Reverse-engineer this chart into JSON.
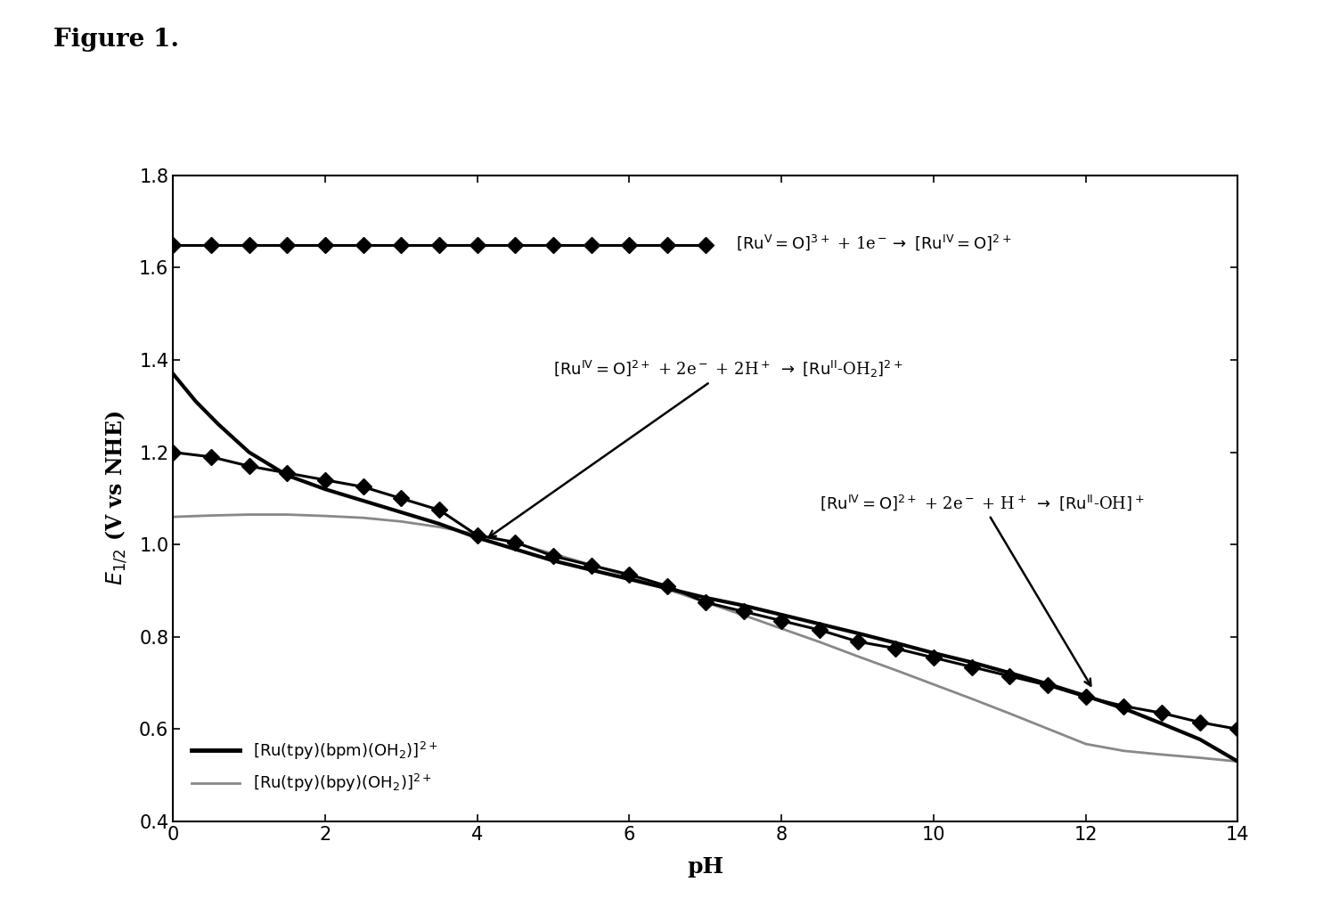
{
  "title": "Figure 1.",
  "xlabel": "pH",
  "ylabel": "E1/2 (V vs NHE)",
  "xlim": [
    0,
    14
  ],
  "ylim": [
    0.4,
    1.8
  ],
  "xticks": [
    0,
    2,
    4,
    6,
    8,
    10,
    12,
    14
  ],
  "yticks": [
    0.4,
    0.6,
    0.8,
    1.0,
    1.2,
    1.4,
    1.6,
    1.8
  ],
  "series_flat_x": [
    0,
    0.5,
    1,
    1.5,
    2,
    2.5,
    3,
    3.5,
    4,
    4.5,
    5,
    5.5,
    6,
    6.5,
    7
  ],
  "series_flat_y": [
    1.65,
    1.65,
    1.65,
    1.65,
    1.65,
    1.65,
    1.65,
    1.65,
    1.65,
    1.65,
    1.65,
    1.65,
    1.65,
    1.65,
    1.65
  ],
  "series_diamond_x": [
    0,
    0.5,
    1,
    1.5,
    2,
    2.5,
    3,
    3.5,
    4,
    4.5,
    5,
    5.5,
    6,
    6.5,
    7,
    7.5,
    8,
    8.5,
    9,
    9.5,
    10,
    10.5,
    11,
    11.5,
    12,
    12.5,
    13,
    13.5,
    14
  ],
  "series_diamond_y": [
    1.2,
    1.19,
    1.17,
    1.155,
    1.14,
    1.125,
    1.1,
    1.075,
    1.02,
    1.005,
    0.975,
    0.955,
    0.935,
    0.91,
    0.875,
    0.855,
    0.835,
    0.815,
    0.79,
    0.775,
    0.755,
    0.735,
    0.715,
    0.695,
    0.67,
    0.65,
    0.635,
    0.615,
    0.6
  ],
  "series_bpm_x": [
    0,
    0.3,
    0.6,
    1,
    1.5,
    2,
    2.5,
    3,
    3.5,
    4,
    4.5,
    5,
    5.5,
    6,
    6.5,
    7,
    7.5,
    8,
    8.5,
    9,
    9.5,
    10,
    10.5,
    11,
    11.5,
    12,
    12.5,
    13,
    13.5,
    14
  ],
  "series_bpm_y": [
    1.37,
    1.31,
    1.26,
    1.2,
    1.15,
    1.12,
    1.095,
    1.07,
    1.045,
    1.015,
    0.99,
    0.965,
    0.945,
    0.925,
    0.905,
    0.885,
    0.868,
    0.848,
    0.828,
    0.808,
    0.787,
    0.765,
    0.745,
    0.722,
    0.698,
    0.672,
    0.645,
    0.612,
    0.578,
    0.53
  ],
  "series_bpy_x": [
    0,
    0.5,
    1,
    1.5,
    2,
    2.5,
    3,
    3.5,
    4,
    4.5,
    5,
    5.5,
    6,
    6.5,
    7,
    7.5,
    8,
    8.5,
    9,
    9.5,
    10,
    10.5,
    11,
    11.5,
    12,
    12.5,
    13,
    13.5,
    14
  ],
  "series_bpy_y": [
    1.06,
    1.063,
    1.065,
    1.065,
    1.062,
    1.058,
    1.05,
    1.038,
    1.022,
    1.003,
    0.98,
    0.956,
    0.93,
    0.903,
    0.875,
    0.847,
    0.818,
    0.789,
    0.758,
    0.728,
    0.697,
    0.666,
    0.634,
    0.601,
    0.568,
    0.553,
    0.545,
    0.538,
    0.53
  ],
  "background_color": "#ffffff",
  "line_color_bpm": "#000000",
  "line_color_bpy": "#888888",
  "diamond_color": "#000000"
}
